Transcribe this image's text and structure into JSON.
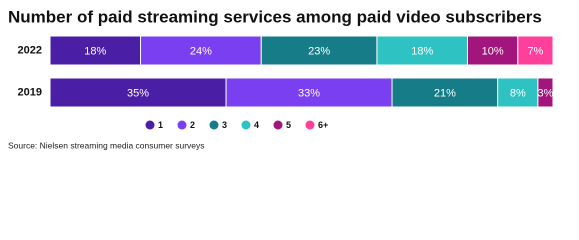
{
  "chart_data": {
    "type": "stacked-bar-horizontal",
    "title": "Number of paid streaming services among paid video subscribers",
    "categories": [
      "2022",
      "2019"
    ],
    "series": [
      {
        "name": "1",
        "color": "#4b1ea6",
        "values": [
          18,
          35
        ],
        "value_labels": [
          "18%",
          "35%"
        ]
      },
      {
        "name": "2",
        "color": "#7a3ff0",
        "values": [
          24,
          33
        ],
        "value_labels": [
          "24%",
          "33%"
        ]
      },
      {
        "name": "3",
        "color": "#167d88",
        "values": [
          23,
          21
        ],
        "value_labels": [
          "23%",
          "21%"
        ]
      },
      {
        "name": "4",
        "color": "#2ec3c2",
        "values": [
          18,
          8
        ],
        "value_labels": [
          "18%",
          "8%"
        ]
      },
      {
        "name": "5",
        "color": "#a1157c",
        "values": [
          10,
          3
        ],
        "value_labels": [
          "10%",
          "3%"
        ]
      },
      {
        "name": "6+",
        "color": "#ff3f9c",
        "values": [
          7,
          0
        ],
        "value_labels": [
          "7%",
          null
        ]
      }
    ],
    "source": "Source: Nielsen streaming media consumer surveys"
  }
}
